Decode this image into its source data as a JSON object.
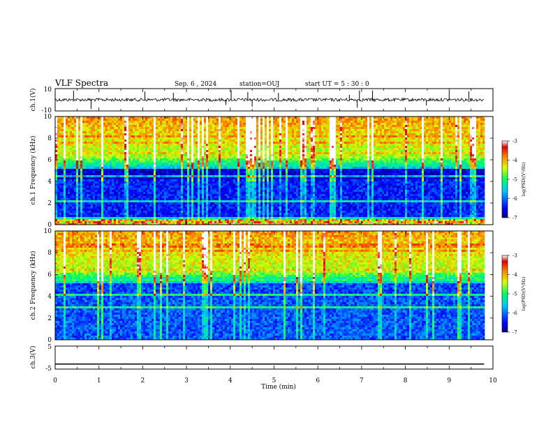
{
  "header": {
    "title": "VLF Spectra",
    "date": "Sep. 6 , 2024",
    "station": "station=OUJ",
    "start": "start UT =  5 : 30 : 0"
  },
  "colorbar": {
    "label": "log(PSD)(V²/Hz)",
    "ticks": [
      "-3",
      "-4",
      "-5",
      "-6",
      "-7"
    ],
    "min": -7,
    "max": -3
  },
  "chart_data": [
    {
      "type": "line",
      "panel": "waveform-ch1",
      "ylabel": "ch.1(V)",
      "ylim": [
        -10,
        10
      ],
      "yticks": [
        "10",
        "-10"
      ],
      "baseline": 0,
      "note_spikes_min": [
        0.42,
        0.82,
        2.05,
        2.7,
        3.9,
        4.02,
        4.4,
        4.5,
        5.1,
        6.72,
        6.9,
        6.95,
        7.25,
        8.48,
        9.0,
        9.45
      ]
    },
    {
      "type": "heatmap",
      "panel": "spectrogram-ch1",
      "ylabel": "ch.1 Frequency (kHz)",
      "ylim": [
        0,
        10
      ],
      "yticks": [
        "0",
        "2",
        "4",
        "6",
        "8",
        "10"
      ],
      "value_range_logPSD": [
        -7,
        -3
      ]
    },
    {
      "type": "heatmap",
      "panel": "spectrogram-ch2",
      "ylabel": "ch.2 Frequency (kHz)",
      "ylim": [
        0,
        10
      ],
      "yticks": [
        "0",
        "2",
        "4",
        "6",
        "8",
        "10"
      ],
      "value_range_logPSD": [
        -7,
        -3
      ]
    },
    {
      "type": "line",
      "panel": "waveform-ch3",
      "ylabel": "ch.3(V)",
      "ylim": [
        -5,
        5
      ],
      "yticks": [
        "5",
        "-5"
      ],
      "x": [
        0,
        9.8
      ],
      "y": [
        -2.8,
        -2.8
      ]
    }
  ],
  "xaxis": {
    "label": "Time (min)",
    "xlim": [
      0,
      10
    ],
    "ticks": [
      "0",
      "1",
      "2",
      "3",
      "4",
      "5",
      "6",
      "7",
      "8",
      "9",
      "10"
    ],
    "data_end_min": 9.8
  }
}
